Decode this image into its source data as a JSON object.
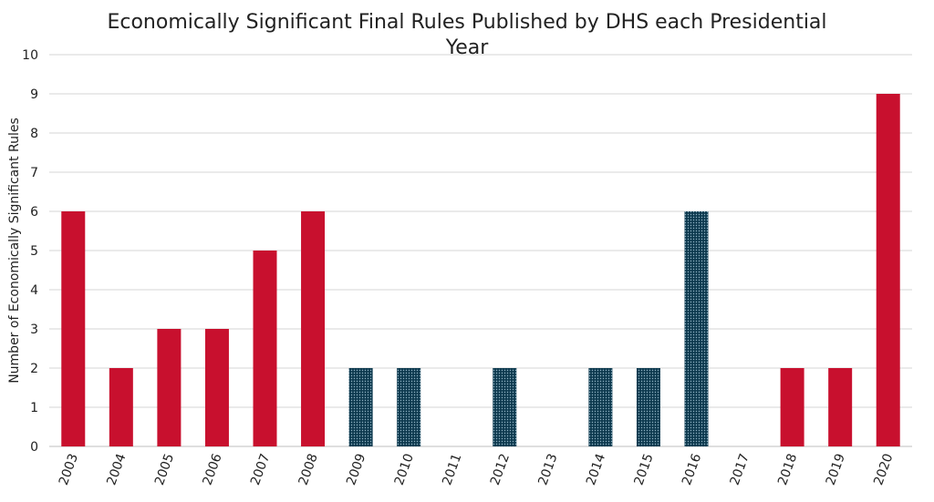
{
  "chart_data": {
    "type": "bar",
    "title": "Economically Significant Final Rules Published by DHS each Presidential Year",
    "xlabel": "",
    "ylabel": "Number of Economically Significant Rules",
    "ylim": [
      0,
      10
    ],
    "yticks": [
      0,
      1,
      2,
      3,
      4,
      5,
      6,
      7,
      8,
      9,
      10
    ],
    "grid": true,
    "categories": [
      "2003",
      "2004",
      "2005",
      "2006",
      "2007",
      "2008",
      "2009",
      "2010",
      "2011",
      "2012",
      "2013",
      "2014",
      "2015",
      "2016",
      "2017",
      "2018",
      "2019",
      "2020"
    ],
    "values": [
      6,
      2,
      3,
      3,
      5,
      6,
      2,
      2,
      0,
      2,
      0,
      2,
      2,
      6,
      0,
      2,
      2,
      9
    ],
    "bar_styles": [
      "solid",
      "solid",
      "solid",
      "solid",
      "solid",
      "solid",
      "dotted",
      "dotted",
      "dotted",
      "dotted",
      "dotted",
      "dotted",
      "dotted",
      "dotted",
      "solid",
      "solid",
      "solid",
      "solid"
    ],
    "colors": {
      "solid": "#c8102e",
      "dotted": "#0e3a4f",
      "dot_light": "#8fb3c4"
    }
  }
}
